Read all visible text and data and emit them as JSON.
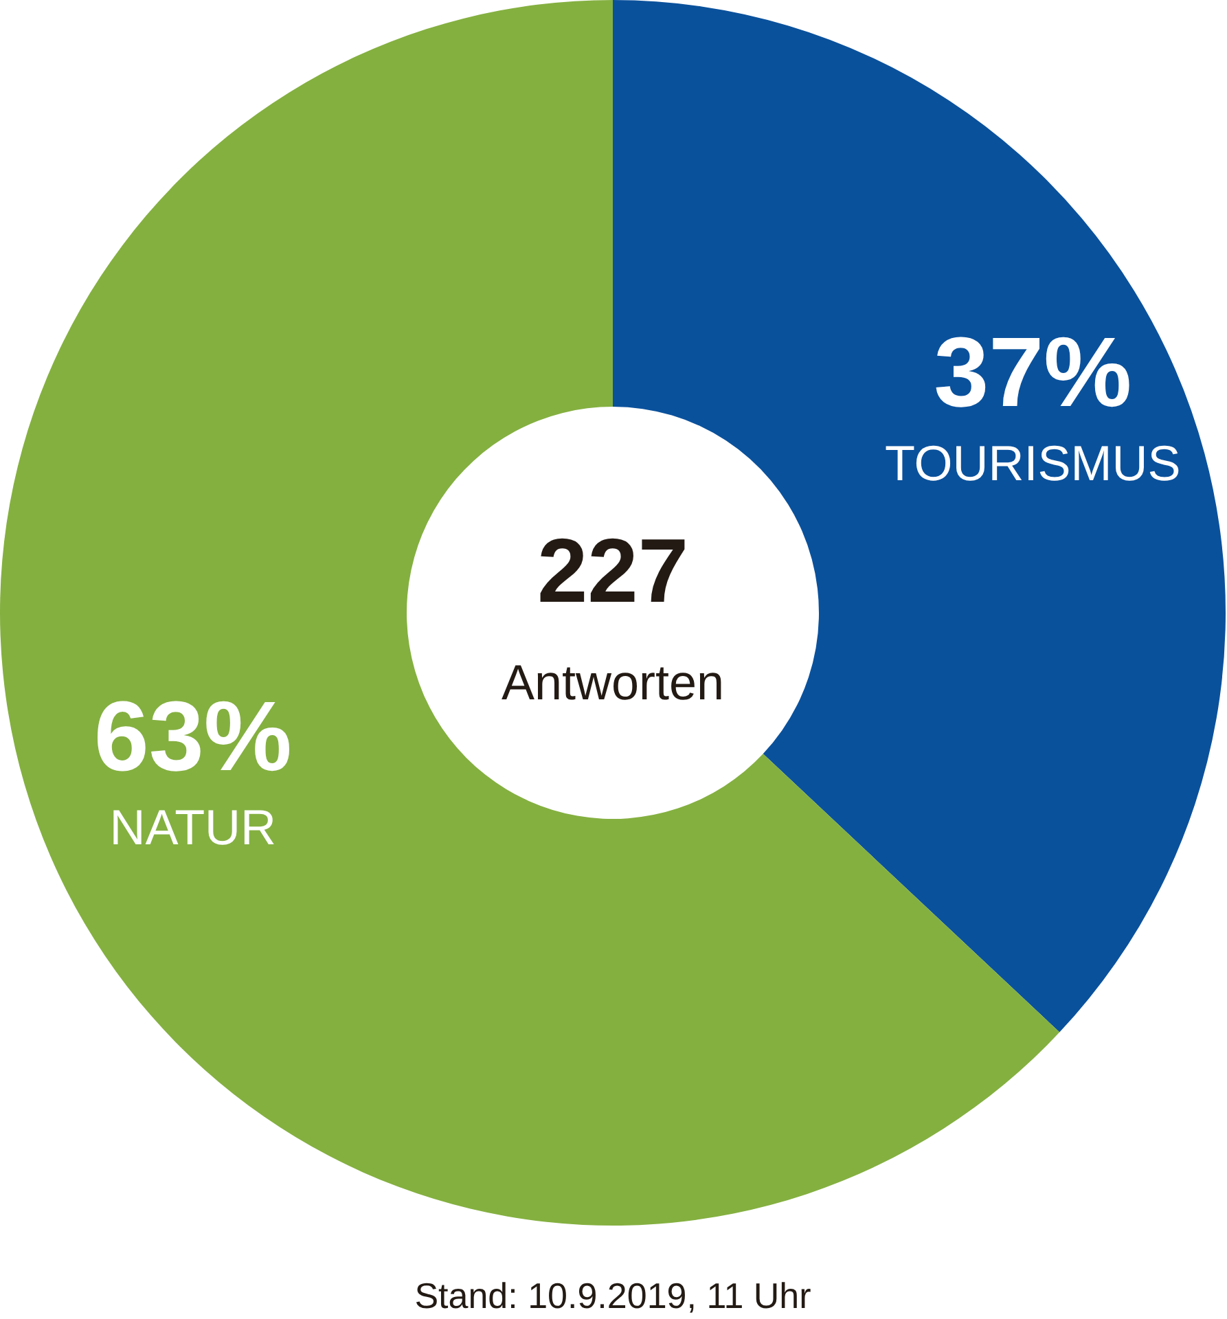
{
  "chart_data": {
    "type": "donut",
    "categories": [
      "TOURISMUS",
      "NATUR"
    ],
    "values": [
      37,
      63
    ],
    "colors": [
      "#0a519c",
      "#84b040"
    ],
    "value_labels": [
      "37%",
      "63%"
    ],
    "annotations": [
      "227",
      "Antworten",
      "Stand: 10.9.2019, 11 Uhr"
    ]
  }
}
